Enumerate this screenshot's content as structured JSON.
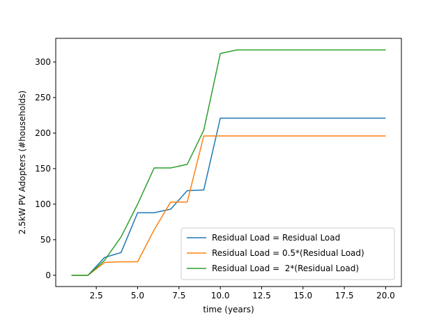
{
  "chart_data": {
    "type": "line",
    "xlabel": "time (years)",
    "ylabel": "2.5kW PV Adopters (#households)",
    "xlim": [
      0.05,
      20.95
    ],
    "ylim": [
      -15.85,
      333.3
    ],
    "xticks": [
      2.5,
      5.0,
      7.5,
      10.0,
      12.5,
      15.0,
      17.5,
      20.0
    ],
    "xtick_labels": [
      "2.5",
      "5.0",
      "7.5",
      "10.0",
      "12.5",
      "15.0",
      "17.5",
      "20.0"
    ],
    "yticks": [
      0,
      50,
      100,
      150,
      200,
      250,
      300
    ],
    "ytick_labels": [
      "0",
      "50",
      "100",
      "150",
      "200",
      "250",
      "300"
    ],
    "grid": false,
    "legend_position": "lower right",
    "x": [
      1,
      2,
      3,
      4,
      5,
      6,
      7,
      8,
      9,
      10,
      11,
      12,
      13,
      14,
      15,
      16,
      17,
      18,
      19,
      20
    ],
    "series": [
      {
        "name": "Residual Load = Residual Load",
        "color": "#1f77b4",
        "values": [
          0,
          0,
          25,
          32,
          88,
          88,
          93,
          119,
          120,
          221,
          221,
          221,
          221,
          221,
          221,
          221,
          221,
          221,
          221,
          221
        ]
      },
      {
        "name": "Residual Load = 0.5*(Residual Load)",
        "color": "#ff7f0e",
        "values": [
          0,
          0,
          18,
          19,
          19,
          64,
          103,
          103,
          196,
          196,
          196,
          196,
          196,
          196,
          196,
          196,
          196,
          196,
          196,
          196
        ]
      },
      {
        "name": "Residual Load =  2*(Residual Load)",
        "color": "#2ca02c",
        "values": [
          0,
          0,
          21,
          54,
          100,
          151,
          151,
          156,
          204,
          312,
          317,
          317,
          317,
          317,
          317,
          317,
          317,
          317,
          317,
          317
        ]
      }
    ]
  }
}
